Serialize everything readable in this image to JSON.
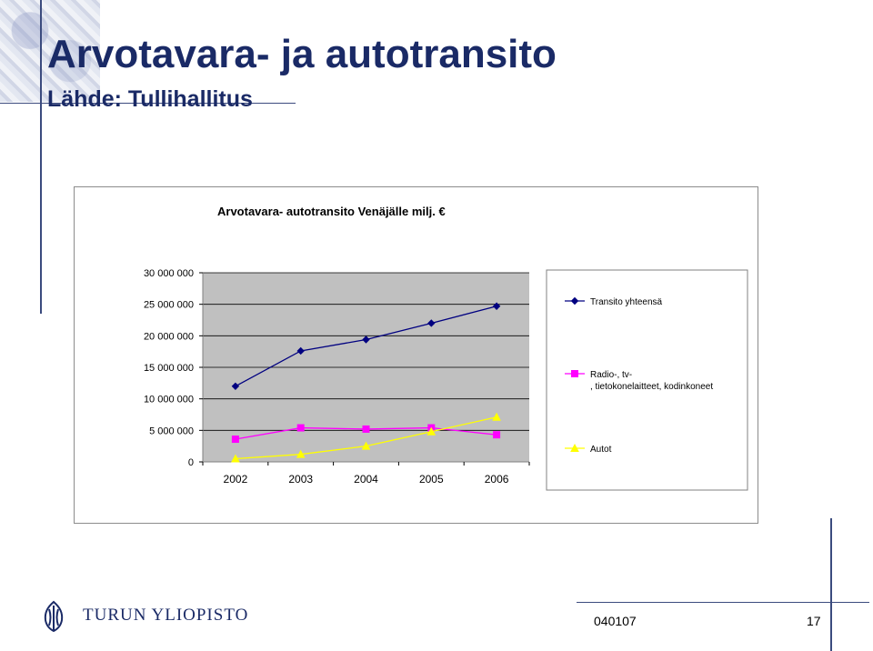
{
  "slide": {
    "title": "Arvotavara- ja autotransito",
    "subtitle": "Lähde: Tullihallitus",
    "logo_text": "TURUN YLIOPISTO",
    "logo_icon": "university-emblem-icon",
    "footer_code": "040107",
    "page_number": "17"
  },
  "colors": {
    "accent": "#1a2a66",
    "plot_bg": "#c0c0c0",
    "series1": "#000080",
    "series2": "#ff00ff",
    "series3": "#ffff00"
  },
  "chart_data": {
    "type": "line",
    "title": "Arvotavara- autotransito Venäjälle milj. €",
    "categories": [
      "2002",
      "2003",
      "2004",
      "2005",
      "2006"
    ],
    "ylim": [
      0,
      30000000
    ],
    "yticks": [
      0,
      5000000,
      10000000,
      15000000,
      20000000,
      25000000,
      30000000
    ],
    "ytick_labels": [
      "0",
      "5 000 000",
      "10 000 000",
      "15 000 000",
      "20 000 000",
      "25 000 000",
      "30 000 000"
    ],
    "grid": true,
    "legend_position": "right",
    "series": [
      {
        "name": "Transito yhteensä",
        "marker": "diamond",
        "color": "#000080",
        "values": [
          12000000,
          17600000,
          19400000,
          22000000,
          24700000
        ]
      },
      {
        "name": "Radio-, tv-\n, tietokonelaitteet, kodinkoneet",
        "marker": "square",
        "color": "#ff00ff",
        "values": [
          3600000,
          5400000,
          5200000,
          5400000,
          4300000
        ]
      },
      {
        "name": "Autot",
        "marker": "triangle",
        "color": "#ffff00",
        "values": [
          500000,
          1200000,
          2500000,
          4800000,
          7100000
        ]
      }
    ]
  }
}
